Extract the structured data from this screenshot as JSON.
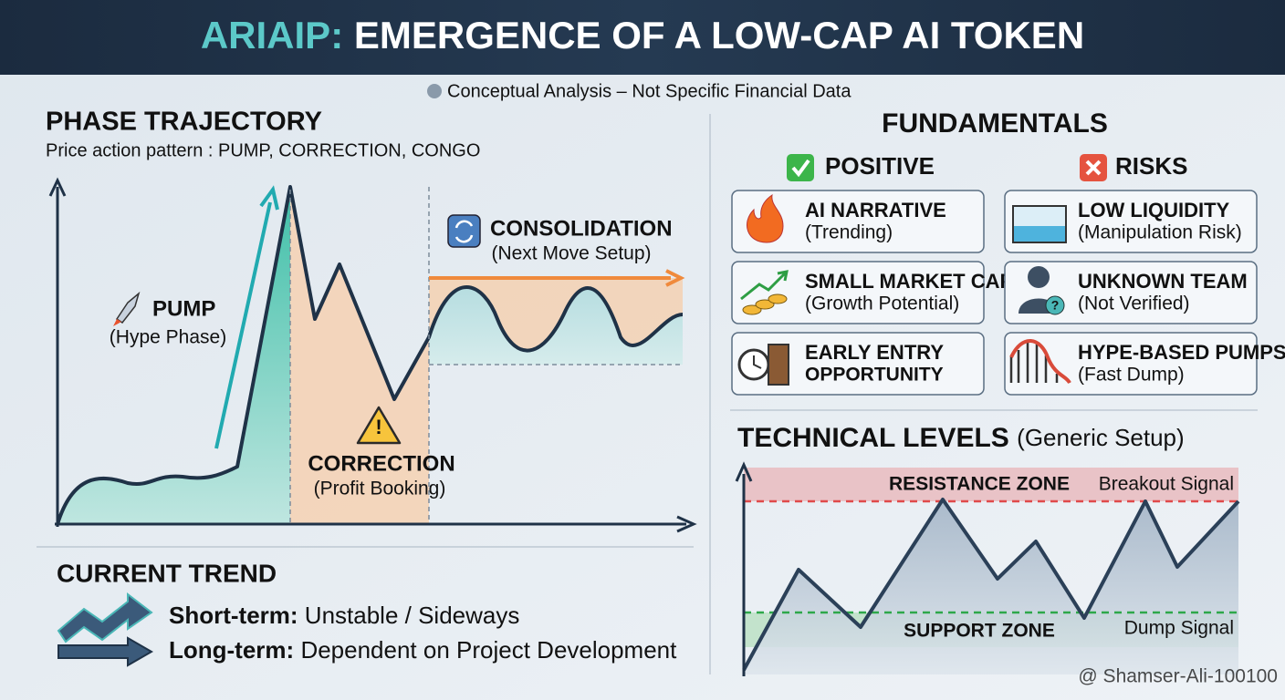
{
  "header": {
    "title_accent": "ARIAIP:",
    "title": "EMERGENCE OF A LOW-CAP AI TOKEN",
    "subtitle": "Conceptual Analysis – Not Specific Financial Data"
  },
  "phase_trajectory": {
    "title": "PHASE TRAJECTORY",
    "subtitle": "Price action pattern : PUMP, CORRECTION, CONGO",
    "phases": [
      {
        "label": "PUMP",
        "note": "(Hype Phase)"
      },
      {
        "label": "CORRECTION",
        "note": "(Profit Booking)"
      },
      {
        "label": "CONSOLIDATION",
        "note": "(Next Move Setup)"
      }
    ]
  },
  "current_trend": {
    "title": "CURRENT TREND",
    "items": [
      {
        "term": "Short-term:",
        "text": "Unstable / Sideways"
      },
      {
        "term": "Long-term:",
        "text": "Dependent on Project Development"
      }
    ]
  },
  "fundamentals": {
    "title": "FUNDAMENTALS",
    "positive": {
      "title": "POSITIVE",
      "items": [
        {
          "label": "AI NARRATIVE",
          "note": "(Trending)"
        },
        {
          "label": "SMALL MARKET CAP",
          "note": "(Growth Potential)"
        },
        {
          "label": "EARLY ENTRY",
          "note": "OPPORTUNITY"
        }
      ]
    },
    "risks": {
      "title": "RISKS",
      "items": [
        {
          "label": "LOW LIQUIDITY",
          "note": "(Manipulation Risk)"
        },
        {
          "label": "UNKNOWN TEAM",
          "note": "(Not Verified)"
        },
        {
          "label": "HYPE-BASED PUMPS",
          "note": "(Fast Dump)"
        }
      ]
    }
  },
  "technical_levels": {
    "title": "TECHNICAL LEVELS",
    "title_note": "(Generic Setup)",
    "resistance": "RESISTANCE ZONE",
    "breakout": "Breakout Signal",
    "support": "SUPPORT ZONE",
    "dump": "Dump Signal"
  },
  "watermark": "@ Shamser-Ali-100100"
}
